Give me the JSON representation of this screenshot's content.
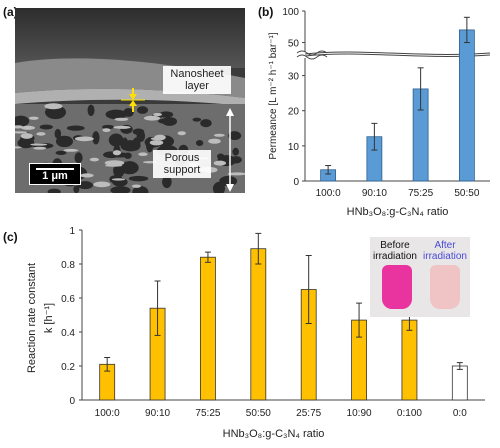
{
  "panels": {
    "a": "(a)",
    "b": "(b)",
    "c": "(c)"
  },
  "sem": {
    "nanosheet_label": "Nanosheet layer",
    "porous_label": "Porous support",
    "scale": "1 μm"
  },
  "inset": {
    "before_label": "Before irradiation",
    "after_label": "After irradiation"
  },
  "chart_data": [
    {
      "type": "bar",
      "panel": "(b)",
      "ylabel": "Permeance [L m⁻² h⁻¹ bar⁻¹]",
      "xlabel": "HNb₃O₈:g-C₃N₄ ratio",
      "categories": [
        "100:0",
        "90:10",
        "75:25",
        "50:50"
      ],
      "values": [
        3.2,
        12.6,
        26.2,
        70
      ],
      "errors": [
        1.2,
        3.8,
        6.0,
        20
      ],
      "axis_break": {
        "lower": [
          0,
          35
        ],
        "upper": [
          35,
          100
        ]
      },
      "yticks_lower": [
        "0",
        "10",
        "20",
        "30"
      ],
      "yticks_upper": [
        "50",
        "100"
      ],
      "bar_color": "#5b9bd5",
      "grid": false
    },
    {
      "type": "bar",
      "panel": "(c)",
      "ylabel": "Reaction rate constant",
      "ylabel2": "k [h⁻¹]",
      "xlabel": "HNb₃O₈:g-C₃N₄ ratio",
      "categories": [
        "100:0",
        "90:10",
        "75:25",
        "50:50",
        "25:75",
        "10:90",
        "0:100",
        "0:0"
      ],
      "values": [
        0.21,
        0.54,
        0.84,
        0.89,
        0.65,
        0.47,
        0.47,
        0.2
      ],
      "errors": [
        0.04,
        0.16,
        0.03,
        0.09,
        0.2,
        0.1,
        0.06,
        0.02
      ],
      "ylim": [
        0,
        1
      ],
      "yticks": [
        "0",
        "0.2",
        "0.4",
        "0.6",
        "0.8",
        "1"
      ],
      "bar_colors": [
        "#ffc000",
        "#ffc000",
        "#ffc000",
        "#ffc000",
        "#ffc000",
        "#ffc000",
        "#ffc000",
        "#ffffff"
      ],
      "grid": false
    }
  ]
}
